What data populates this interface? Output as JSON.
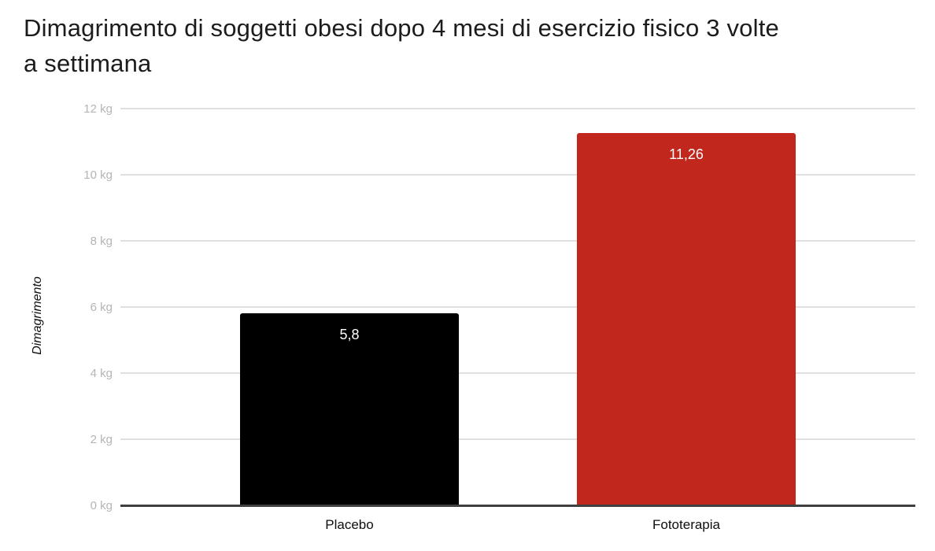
{
  "header": {
    "title_lines": [
      "Dimagrimento di soggetti obesi dopo 4 mesi di esercizio fisico 3 volte",
      "a settimana"
    ]
  },
  "chart_data": {
    "type": "bar",
    "title": "Dimagrimento di soggetti obesi dopo 4 mesi di esercizio fisico 3 volte a settimana",
    "ylabel": "Dimagrimento",
    "xlabel": "",
    "categories": [
      "Placebo",
      "Fototerapia"
    ],
    "values": [
      5.8,
      11.26
    ],
    "value_labels": [
      "5,8",
      "11,26"
    ],
    "bar_colors": [
      "#000000",
      "#c1271c"
    ],
    "ylim": [
      0,
      12
    ],
    "ytick_step": 2,
    "ytick_labels": [
      "0 kg",
      "2 kg",
      "4 kg",
      "6 kg",
      "8 kg",
      "10 kg",
      "12 kg"
    ],
    "grid": true,
    "legend_position": "none"
  },
  "colors": {
    "background": "#ffffff",
    "grid_line": "#e0e0e0",
    "axis_line": "#3f3f3f",
    "tick_label": "#b5b5b5",
    "category_label": "#0f0f0f",
    "value_label": "#ffffff",
    "title": "#1c1c1c",
    "placebo_bar": "#000000",
    "fototerapia_bar": "#c1271c"
  }
}
